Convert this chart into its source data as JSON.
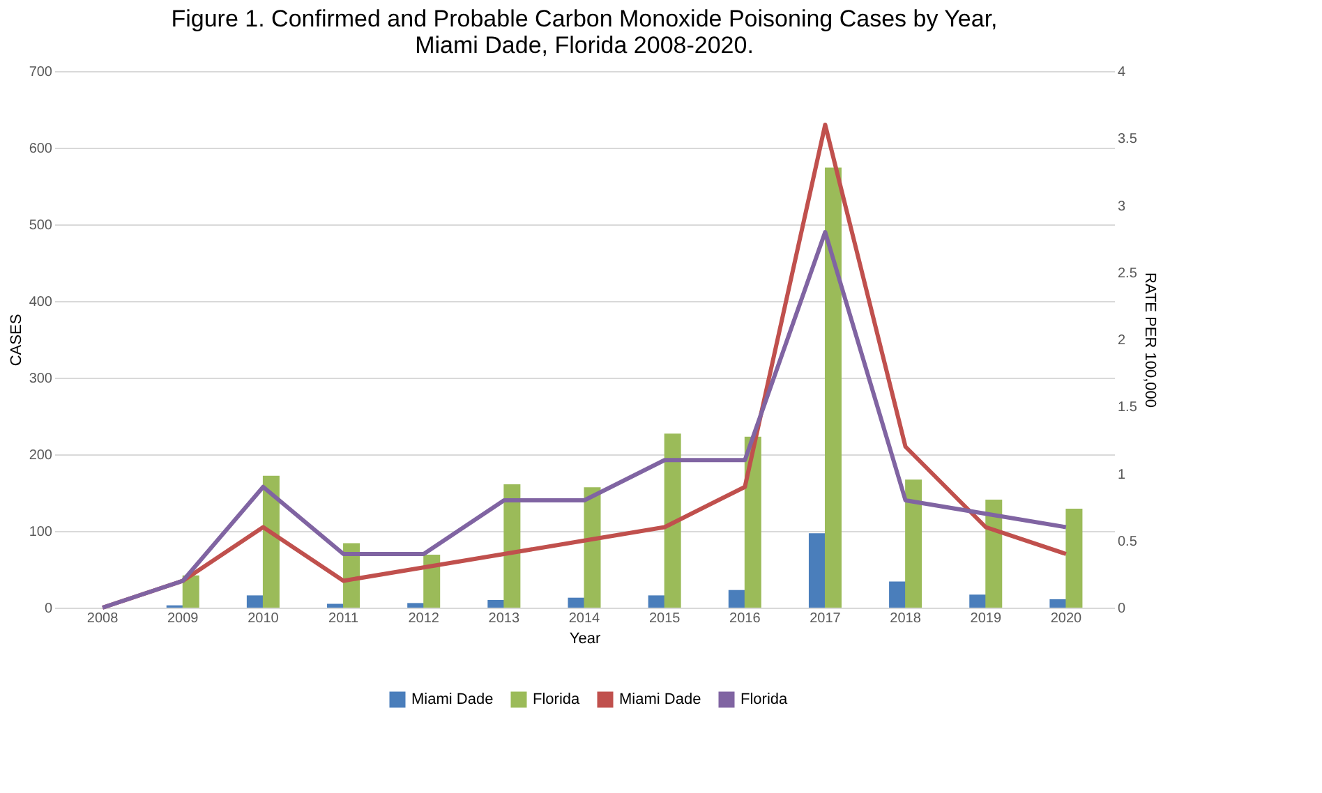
{
  "chart_data": {
    "type": "bar",
    "title": "Figure 1. Confirmed and Probable Carbon Monoxide Poisoning Cases by Year, Miami Dade, Florida 2008-2020.",
    "xlabel": "Year",
    "ylabel": "CASES",
    "y2label": "RATE PER 100,000",
    "categories": [
      "2008",
      "2009",
      "2010",
      "2011",
      "2012",
      "2013",
      "2014",
      "2015",
      "2016",
      "2017",
      "2018",
      "2019",
      "2020"
    ],
    "series": [
      {
        "name": "Miami Dade",
        "color": "#4a7ebb",
        "values": [
          0,
          3,
          16,
          5,
          6,
          10,
          13,
          16,
          23,
          97,
          34,
          17,
          11
        ]
      },
      {
        "name": "Florida",
        "color": "#9bbb59",
        "values": [
          0,
          42,
          172,
          84,
          69,
          161,
          157,
          227,
          223,
          574,
          167,
          141,
          129
        ]
      },
      {
        "name": "Miami Dade",
        "type": "line",
        "axis": "y2",
        "color": "#c0504d",
        "values": [
          0,
          0.2,
          0.6,
          0.2,
          0.3,
          0.4,
          0.5,
          0.6,
          0.9,
          3.6,
          1.2,
          0.6,
          0.4
        ]
      },
      {
        "name": "Florida",
        "type": "line",
        "axis": "y2",
        "color": "#8064a2",
        "values": [
          0,
          0.2,
          0.9,
          0.4,
          0.4,
          0.8,
          0.8,
          1.1,
          1.1,
          2.8,
          0.8,
          0.7,
          0.6
        ]
      }
    ],
    "ylim": [
      0,
      700
    ],
    "yticks": [
      0,
      100,
      200,
      300,
      400,
      500,
      600,
      700
    ],
    "y2lim": [
      0,
      4
    ],
    "y2ticks": [
      0,
      0.5,
      1,
      1.5,
      2,
      2.5,
      3,
      3.5,
      4
    ],
    "grid": "y",
    "legend": "bottom"
  }
}
